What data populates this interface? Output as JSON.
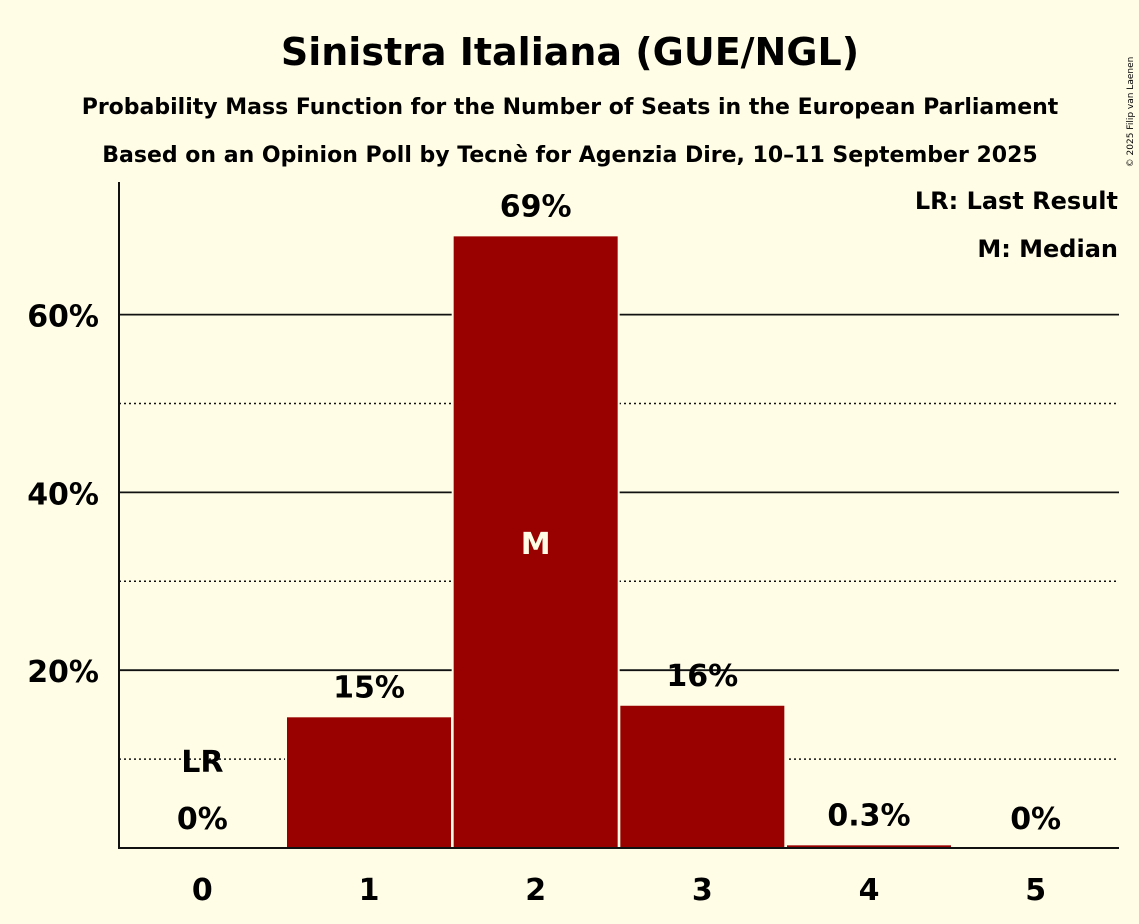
{
  "chart_data": {
    "type": "bar",
    "title": "Sinistra Italiana (GUE/NGL)",
    "subtitle1": "Probability Mass Function for the Number of Seats in the European Parliament",
    "subtitle2": "Based on an Opinion Poll by Tecnè for Agenzia Dire, 10–11 September 2025",
    "categories": [
      "0",
      "1",
      "2",
      "3",
      "4",
      "5"
    ],
    "values": [
      0,
      14.7,
      68.8,
      16.0,
      0.3,
      0
    ],
    "value_labels": [
      "0%",
      "15%",
      "69%",
      "16%",
      "0.3%",
      "0%"
    ],
    "ylim": [
      0,
      75
    ],
    "yticks": [
      {
        "value": 20,
        "label": "20%"
      },
      {
        "value": 40,
        "label": "40%"
      },
      {
        "value": 60,
        "label": "60%"
      }
    ],
    "minor_gridlines": [
      10,
      30,
      50
    ],
    "last_result_index": 0,
    "last_result_marker": "LR",
    "median_index": 2,
    "median_marker": "M",
    "legend": [
      "LR: Last Result",
      "M: Median"
    ],
    "bar_color": "#990000",
    "background_color": "#fffde6",
    "copyright": "© 2025 Filip van Laenen"
  }
}
